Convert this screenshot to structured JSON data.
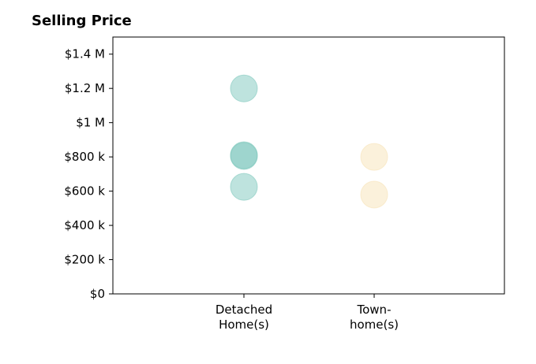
{
  "chart_data": {
    "type": "scatter",
    "title": "Selling Price",
    "xlabel": "",
    "ylabel": "",
    "categories": [
      [
        "Detached",
        "Home(s)"
      ],
      [
        "Town-",
        "home(s)"
      ]
    ],
    "ylim": [
      0,
      1500000
    ],
    "yticks": [
      0,
      200000,
      400000,
      600000,
      800000,
      1000000,
      1200000,
      1400000
    ],
    "ytick_labels": [
      "$0",
      "$200 k",
      "$400 k",
      "$600 k",
      "$800 k",
      "$1 M",
      "$1.2 M",
      "$1.4 M"
    ],
    "grid": false,
    "series": [
      {
        "category_index": 0,
        "color": "#7ec8bd",
        "points": [
          1200000,
          810000,
          805000,
          625000
        ]
      },
      {
        "category_index": 1,
        "color": "#f7e3b8",
        "points": [
          800000,
          580000
        ]
      }
    ]
  }
}
